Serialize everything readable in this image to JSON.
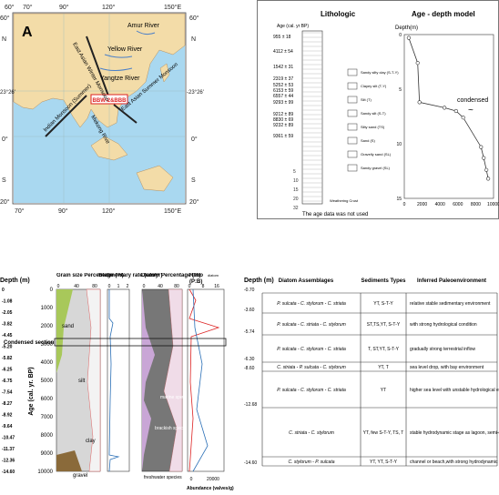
{
  "map": {
    "panel_label": "A",
    "lon_top": [
      "60°",
      "70°",
      "90°",
      "120°",
      "150°E"
    ],
    "lon_bottom": [
      "70°",
      "90°",
      "120°",
      "150°E"
    ],
    "lat_left": [
      "60°",
      "N",
      "23°26'",
      "0°",
      "S",
      "20°"
    ],
    "lat_right": [
      "60°",
      "N",
      "-23°26'",
      "0°",
      "S",
      "20°"
    ],
    "labels": {
      "amur": "Amur River",
      "yellow": "Yellow River",
      "yangtze": "Yangtze River",
      "east_asian": "East Asian Winter Monsoon",
      "mekong": "Mekong Rive",
      "indian": "Indian Monsoon (Summer)",
      "east_summer": "East Asian Summer Monsoon",
      "core": "BBW-2&BBB"
    }
  },
  "litho": {
    "title": "Lithologic",
    "age_header": "Age (cal. yr BP)",
    "depth_header": "Depth(m)",
    "ages": [
      "955 ± 18",
      "4112 ± 54",
      "1542 ± 31",
      "2319 ± 37",
      "5252 ± 53",
      "6153 ± 59",
      "6557 ± 44",
      "9293 ± 99",
      "9212 ± 89",
      "8830 ± 69",
      "9232 ± 89",
      "9361 ± 59"
    ],
    "depth_ticks": [
      "5",
      "10",
      "15",
      "20",
      "32"
    ],
    "legend": [
      "Sandy silty clay (S-T-Y)",
      "Clayey silt (T-Y)",
      "Silt (T)",
      "Sandy silt (S-T)",
      "Silty sand (TS)",
      "Sand (S)",
      "Gravelly sand (SL)",
      "Sandy gravel (SL)"
    ],
    "weathering": "Weathering Crust",
    "footnote": "The age data was not used"
  },
  "agemodel": {
    "title": "Age - depth model",
    "y_label": "Depth(m)",
    "y_ticks": [
      "0",
      "5",
      "10",
      "15"
    ],
    "x_ticks": [
      "0",
      "2000",
      "4000",
      "6000",
      "8000",
      "10000"
    ],
    "condensed": "condensed",
    "tilde": "~",
    "points": [
      [
        500,
        0.3
      ],
      [
        1500,
        2.6
      ],
      [
        1700,
        6.2
      ],
      [
        4500,
        6.7
      ],
      [
        5800,
        7.0
      ],
      [
        6600,
        7.6
      ],
      [
        8600,
        10.3
      ],
      [
        8900,
        11.3
      ],
      [
        9200,
        12.4
      ],
      [
        9400,
        13.2
      ]
    ]
  },
  "strat": {
    "depth_header": "Depth (m)",
    "depth_ticks": [
      "0",
      "-1.08",
      "-2.05",
      "-3.82",
      "-4.45",
      "-5.20",
      "-5.82",
      "-6.25",
      "-6.75",
      "-7.54",
      "-8.27",
      "-8.92",
      "-9.64",
      "-10.47",
      "-11.37",
      "-12.36",
      "-14.60"
    ],
    "age_label": "Age (cal. yr. BP)",
    "age_ticks": [
      "0",
      "1000",
      "2000",
      "3000",
      "4000",
      "5000",
      "6000",
      "7000",
      "8000",
      "9000",
      "10000"
    ],
    "grain_title": "Grain size Percentage (%)",
    "grain_ticks": [
      "0",
      "40",
      "80"
    ],
    "sed_title": "Sedimentary rate (cm/yr)",
    "sed_ticks": [
      "0",
      "1",
      "2"
    ],
    "diatom_title": "Diatom Percentage (%)",
    "diatom_ticks": [
      "0",
      "40",
      "80"
    ],
    "ratio_title": "Ratio",
    "ratio_sub": "diatom",
    "ratio_pb": "(P:B)",
    "ratio_ticks": [
      "0",
      "8",
      "16"
    ],
    "abund_ticks": [
      "0",
      "20000"
    ],
    "abund_label": "Abundance (valves/g)",
    "condensed_label": "Condensed section",
    "labels": {
      "sand": "sand",
      "silt": "silt",
      "clay": "clay",
      "gravel": "gravel",
      "marine": "marine species",
      "brackish": "brackish species",
      "fresh": "freshwater species"
    }
  },
  "table": {
    "depth_header": "Depth (m)",
    "headers": [
      "Diatom Assemblages",
      "Sediments Types",
      "Inferred Paleoenvironment"
    ],
    "depth_marks": [
      "-0.70",
      "-3.60",
      "-5.74",
      "-6.30",
      "-8.60",
      "-12.68",
      "-14.60"
    ],
    "rows": [
      {
        "assemblage": "P. sulcata - C. stylorum - C. striata",
        "sediment": "YT, S-T-Y",
        "env": "relative stable sedimentary environment"
      },
      {
        "assemblage": "P. sulcata - C. striata - C. stylorum",
        "sediment": "ST,TS,YT, S-T-Y",
        "env": "with strong hydrological condition"
      },
      {
        "assemblage": "P. sulcata - C. stylorum - C. striata",
        "sediment": "T, ST,YT, S-T-Y",
        "env": "gradually strong terrestrial inflow"
      },
      {
        "assemblage": "C. striata - P. sulcata - C. stylorum",
        "sediment": "YT, T",
        "env": "sea level drop, with bay environment"
      },
      {
        "assemblage": "P. sulcata - C. stylorum - C. striata",
        "sediment": "YT",
        "env": "higher sea level with unstable hydrological environment as a relative wide bay"
      },
      {
        "assemblage": "C. striata - C. stylorum",
        "sediment": "YT, few S-T-Y, TS, T",
        "env": "stable hydrodynamic stage as lagoon, semi-closed status"
      },
      {
        "assemblage": "C. stylorum - P. sulcata",
        "sediment": "YT, YT, S-T-Y",
        "env": "channel or beach,with strong hydrodynamic"
      }
    ]
  }
}
